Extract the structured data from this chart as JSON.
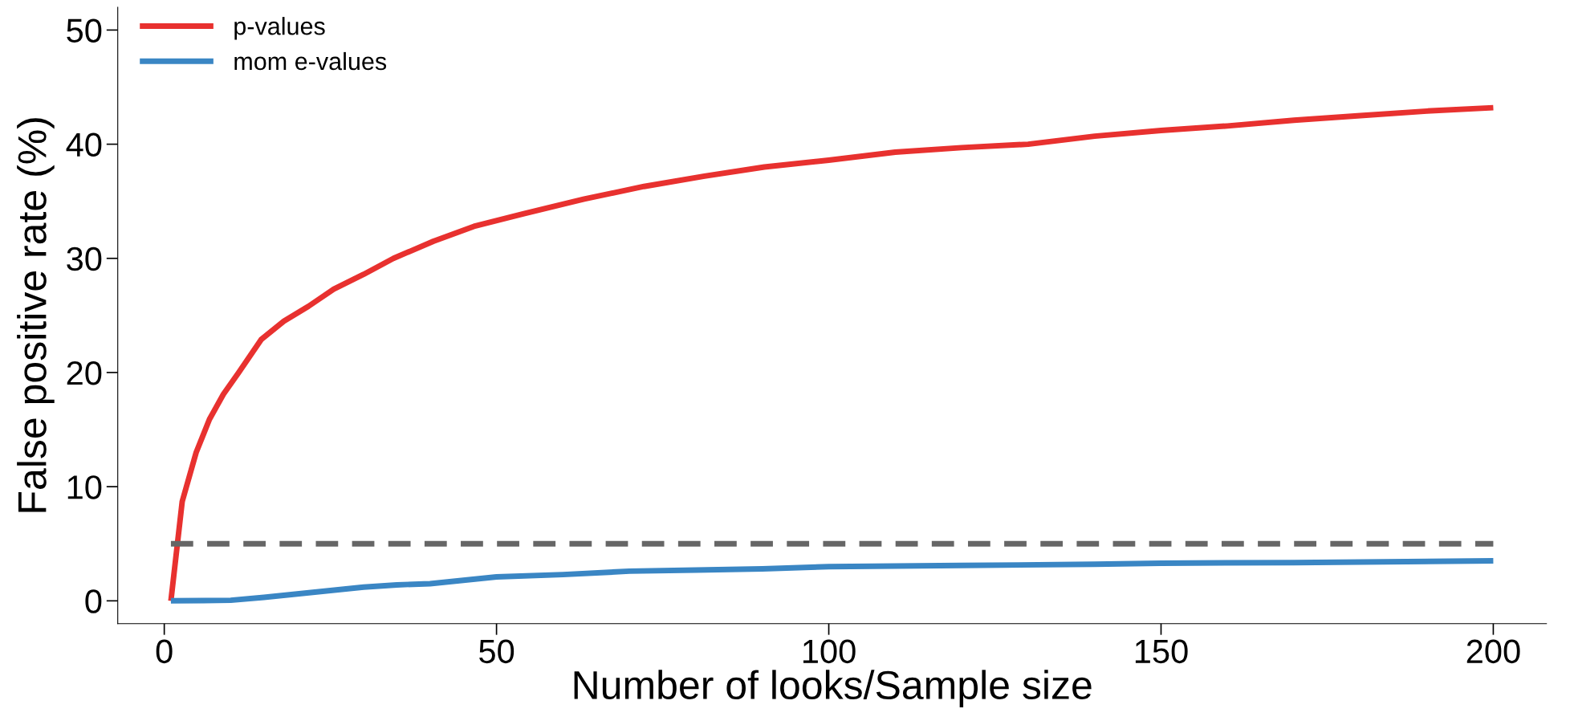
{
  "chart_data": {
    "type": "line",
    "xlabel": "Number of looks/Sample size",
    "ylabel": "False positive rate (%)",
    "xlim": [
      -7,
      208
    ],
    "ylim": [
      -2,
      52
    ],
    "xticks": [
      0,
      50,
      100,
      150,
      200
    ],
    "yticks": [
      0,
      10,
      20,
      30,
      40,
      50
    ],
    "grid": false,
    "legend": "top left",
    "line_style": "solid",
    "marker": "none",
    "series": [
      {
        "name": "p-values",
        "color": "#e8312f",
        "x": [
          1,
          2.7,
          4.8,
          6.8,
          8.9,
          11.2,
          14.6,
          18,
          21.7,
          25.5,
          30,
          34.5,
          40.5,
          46.6,
          54,
          63.2,
          72.2,
          81.3,
          90.3,
          100,
          110,
          120,
          130,
          140,
          150,
          160,
          170,
          180,
          190,
          200
        ],
        "values": [
          0,
          8.7,
          13,
          15.9,
          18.1,
          20,
          22.9,
          24.5,
          25.8,
          27.3,
          28.6,
          30,
          31.5,
          32.8,
          33.9,
          35.2,
          36.3,
          37.2,
          38,
          38.6,
          39.3,
          39.7,
          40,
          40.7,
          41.2,
          41.6,
          42.1,
          42.5,
          42.9,
          43.2
        ]
      },
      {
        "name": "mom e-values",
        "color": "#3a86c4",
        "x": [
          1,
          10,
          15,
          20,
          25,
          30,
          35,
          40,
          45,
          50,
          60,
          70,
          80,
          90,
          100,
          120,
          140,
          150,
          170,
          200
        ],
        "values": [
          0,
          0.05,
          0.3,
          0.6,
          0.9,
          1.2,
          1.4,
          1.5,
          1.8,
          2.1,
          2.3,
          2.6,
          2.7,
          2.8,
          3.0,
          3.1,
          3.2,
          3.3,
          3.35,
          3.5
        ]
      }
    ],
    "ref_lines": [
      {
        "axis": "y",
        "value": 5,
        "color": "#666666",
        "line_style": "dashed"
      }
    ]
  }
}
